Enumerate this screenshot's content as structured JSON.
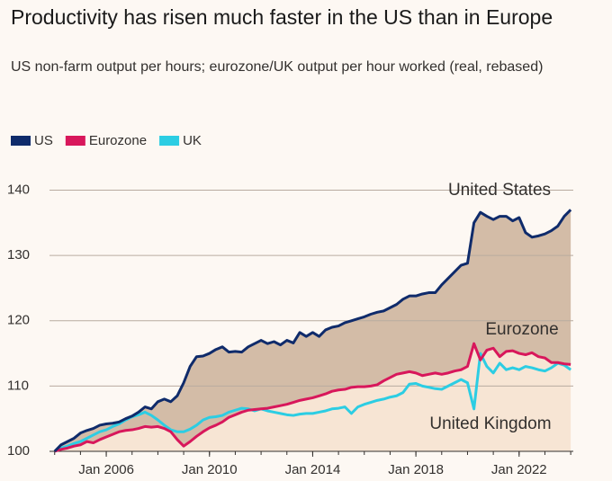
{
  "chart_data": {
    "type": "line",
    "title": "Productivity has risen much faster in the US than in Europe",
    "subtitle": "US non-farm output per hours; eurozone/UK output per hour worked (real, rebased)",
    "x": [
      2004,
      2004.25,
      2004.5,
      2004.75,
      2005,
      2005.25,
      2005.5,
      2005.75,
      2006,
      2006.25,
      2006.5,
      2006.75,
      2007,
      2007.25,
      2007.5,
      2007.75,
      2008,
      2008.25,
      2008.5,
      2008.75,
      2009,
      2009.25,
      2009.5,
      2009.75,
      2010,
      2010.25,
      2010.5,
      2010.75,
      2011,
      2011.25,
      2011.5,
      2011.75,
      2012,
      2012.25,
      2012.5,
      2012.75,
      2013,
      2013.25,
      2013.5,
      2013.75,
      2014,
      2014.25,
      2014.5,
      2014.75,
      2015,
      2015.25,
      2015.5,
      2015.75,
      2016,
      2016.25,
      2016.5,
      2016.75,
      2017,
      2017.25,
      2017.5,
      2017.75,
      2018,
      2018.25,
      2018.5,
      2018.75,
      2019,
      2019.25,
      2019.5,
      2019.75,
      2020,
      2020.25,
      2020.5,
      2020.75,
      2021,
      2021.25,
      2021.5,
      2021.75,
      2022,
      2022.25,
      2022.5,
      2022.75,
      2023,
      2023.25,
      2023.5,
      2023.75,
      2024
    ],
    "series": [
      {
        "name": "US",
        "color": "#0f2b6b",
        "values": [
          100,
          101,
          101.5,
          102,
          102.8,
          103.2,
          103.5,
          104,
          104.2,
          104.3,
          104.5,
          105,
          105.4,
          106,
          106.8,
          106.5,
          107.6,
          108,
          107.6,
          108.5,
          110.5,
          113,
          114.5,
          114.6,
          115,
          115.6,
          116,
          115.2,
          115.3,
          115.2,
          116,
          116.5,
          117,
          116.5,
          116.8,
          116.3,
          117,
          116.6,
          118.2,
          117.6,
          118.2,
          117.6,
          118.6,
          119,
          119.2,
          119.7,
          120,
          120.3,
          120.6,
          121,
          121.3,
          121.5,
          122,
          122.5,
          123.3,
          123.8,
          123.8,
          124.1,
          124.3,
          124.3,
          125.5,
          126.5,
          127.5,
          128.5,
          128.8,
          135,
          136.6,
          136,
          135.5,
          136,
          136,
          135.3,
          135.8,
          133.5,
          132.8,
          133,
          133.3,
          133.8,
          134.5,
          136,
          137
        ]
      },
      {
        "name": "Eurozone",
        "color": "#d8175b",
        "values": [
          100,
          100.3,
          100.5,
          100.8,
          101,
          101.5,
          101.3,
          101.8,
          102.2,
          102.6,
          103,
          103.2,
          103.3,
          103.5,
          103.8,
          103.7,
          103.8,
          103.5,
          103,
          101.8,
          100.8,
          101.5,
          102.3,
          103,
          103.6,
          104,
          104.5,
          105.2,
          105.6,
          106,
          106.3,
          106.4,
          106.5,
          106.6,
          106.8,
          107,
          107.2,
          107.5,
          107.8,
          108,
          108.2,
          108.5,
          108.8,
          109.2,
          109.4,
          109.5,
          109.8,
          109.9,
          109.9,
          110,
          110.2,
          110.8,
          111.3,
          111.8,
          112,
          112.2,
          112,
          111.6,
          111.8,
          112,
          111.8,
          112,
          112.3,
          112.5,
          113,
          116.5,
          114,
          115.5,
          115.8,
          114.5,
          115.3,
          115.4,
          115,
          114.8,
          115.1,
          114.5,
          114.3,
          113.6,
          113.6,
          113.4,
          113.3
        ]
      },
      {
        "name": "UK",
        "color": "#2ccde3",
        "values": [
          100,
          100.5,
          100.8,
          101.2,
          101.5,
          102,
          102.5,
          103,
          103.3,
          103.8,
          104.2,
          104.8,
          105.3,
          105.6,
          106,
          105.5,
          104.8,
          104,
          103.3,
          103,
          103,
          103.4,
          104,
          104.8,
          105.2,
          105.3,
          105.5,
          106,
          106.3,
          106.6,
          106.5,
          106.2,
          106.5,
          106.2,
          106,
          105.8,
          105.6,
          105.5,
          105.7,
          105.8,
          105.8,
          106,
          106.2,
          106.5,
          106.6,
          106.8,
          105.8,
          106.8,
          107.2,
          107.5,
          107.8,
          108,
          108.3,
          108.5,
          109,
          110.3,
          110.4,
          110,
          109.8,
          109.6,
          109.5,
          110,
          110.5,
          111,
          110.5,
          106.5,
          115,
          113,
          112,
          113.5,
          112.5,
          112.8,
          112.5,
          113,
          112.8,
          112.5,
          112.3,
          112.8,
          113.5,
          113.2,
          112.5
        ]
      }
    ],
    "fill_colors": [
      "#d3bca7",
      "#f7e5d4"
    ],
    "annotations": [
      "United States",
      "Eurozone",
      "United Kingdom"
    ],
    "xlim": [
      2003.8,
      2024.1
    ],
    "xticks": [
      {
        "value": 2006,
        "label": "Jan 2006"
      },
      {
        "value": 2010,
        "label": "Jan 2010"
      },
      {
        "value": 2014,
        "label": "Jan 2014"
      },
      {
        "value": 2018,
        "label": "Jan 2018"
      },
      {
        "value": 2022,
        "label": "Jan 2022"
      }
    ],
    "ylim": [
      100,
      142
    ],
    "yticks": [
      100,
      110,
      120,
      130,
      140
    ],
    "grid": true
  }
}
